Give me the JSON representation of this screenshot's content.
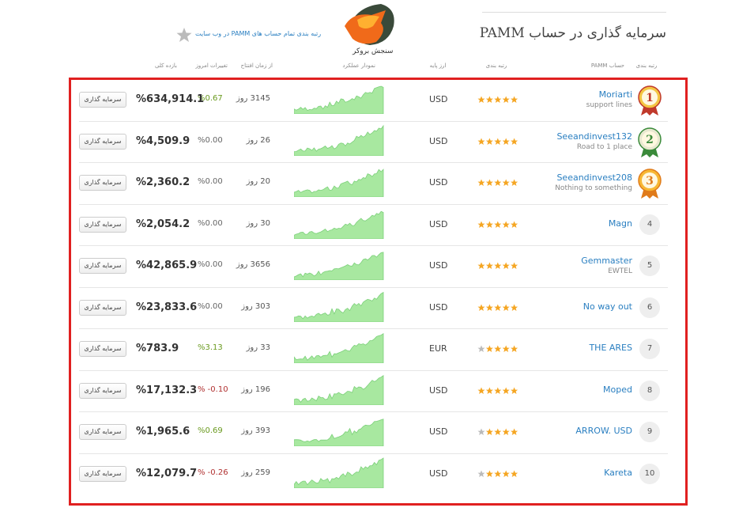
{
  "header": {
    "title": "سرمایه گذاری در حساب PAMM",
    "all_ratings_link": "رتبه بندی تمام حساب های PAMM در وب سایت",
    "logo_text": "سنجش بروکر"
  },
  "table": {
    "columns": [
      "رتبه بندی",
      "حساب PAMM",
      "رتبه بندی",
      "ارز پایه",
      "نمودار عملکرد",
      "از زمان افتتاح",
      "تغییرات امروز",
      "بازده کلی"
    ],
    "rows": [
      {
        "rank": "1",
        "name": "Moriarti",
        "subtitle": "support lines",
        "rating": 5,
        "currency": "USD",
        "age": "3145 روز",
        "change": "%0.67",
        "change_color": "#6a9a1f",
        "total": "%634,914.1",
        "button": "سرمایه گذاری"
      },
      {
        "rank": "2",
        "name": "Seeandinvest132",
        "subtitle": "Road to 1 place",
        "rating": 5,
        "currency": "USD",
        "age": "26 روز",
        "change": "%0.00",
        "change_color": "#666666",
        "total": "%4,509.9",
        "button": "سرمایه گذاری"
      },
      {
        "rank": "3",
        "name": "Seeandinvest208",
        "subtitle": "Nothing to something",
        "rating": 5,
        "currency": "USD",
        "age": "20 روز",
        "change": "%0.00",
        "change_color": "#666666",
        "total": "%2,360.2",
        "button": "سرمایه گذاری"
      },
      {
        "rank": "4",
        "name": "Magn",
        "rating": 5,
        "currency": "USD",
        "age": "30 روز",
        "change": "%0.00",
        "change_color": "#666666",
        "total": "%2,054.2",
        "button": "سرمایه گذاری"
      },
      {
        "rank": "5",
        "name": "Gemmaster",
        "subtitle": "EWTEL",
        "rating": 5,
        "currency": "USD",
        "age": "3656 روز",
        "change": "%0.00",
        "change_color": "#666666",
        "total": "%42,865.9",
        "button": "سرمایه گذاری"
      },
      {
        "rank": "6",
        "name": "No way out",
        "rating": 5,
        "currency": "USD",
        "age": "303 روز",
        "change": "%0.00",
        "change_color": "#666666",
        "total": "%23,833.6",
        "button": "سرمایه گذاری"
      },
      {
        "rank": "7",
        "name": "THE ARES",
        "rating": 4,
        "currency": "EUR",
        "age": "33 روز",
        "change": "%3.13",
        "change_color": "#6a9a1f",
        "total": "%783.9",
        "button": "سرمایه گذاری"
      },
      {
        "rank": "8",
        "name": "Moped",
        "rating": 5,
        "currency": "USD",
        "age": "196 روز",
        "change": "% -0.10",
        "change_color": "#b03030",
        "total": "%17,132.3",
        "button": "سرمایه گذاری"
      },
      {
        "rank": "9",
        "name": "ARROW. USD",
        "rating": 4,
        "currency": "USD",
        "age": "393 روز",
        "change": "%0.69",
        "change_color": "#6a9a1f",
        "total": "%1,965.6",
        "button": "سرمایه گذاری"
      },
      {
        "rank": "10",
        "name": "Kareta",
        "rating": 4,
        "currency": "USD",
        "age": "259 روز",
        "change": "% -0.26",
        "change_color": "#b03030",
        "total": "%12,079.7",
        "button": "سرمایه گذاری"
      }
    ]
  }
}
